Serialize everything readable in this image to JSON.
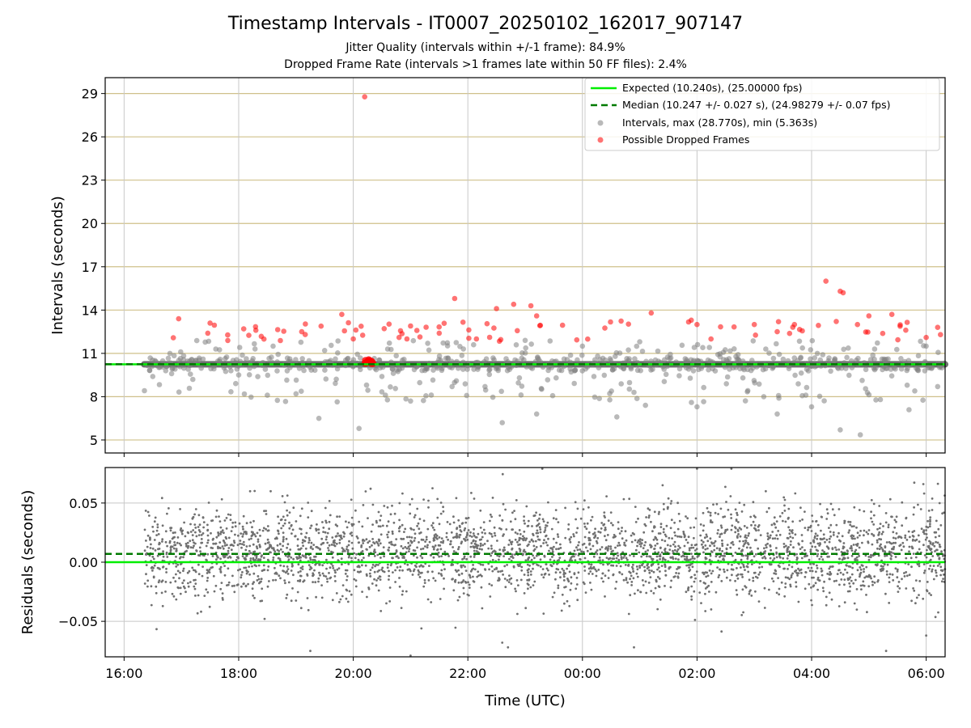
{
  "figure": {
    "title": "Timestamp Intervals - IT0007_20250102_162017_907147",
    "subtitle_1": "Jitter Quality (intervals within +/-1 frame): 84.9%",
    "subtitle_2": "Dropped Frame Rate (intervals >1 frames late within 50 FF files): 2.4%"
  },
  "chart_data": [
    {
      "type": "scatter",
      "panel": "top",
      "ylabel": "Intervals (seconds)",
      "xlabel": "",
      "x_unit": "hours from 16:00 UTC",
      "xlim": [
        -0.33,
        14.33
      ],
      "ylim": [
        4.1,
        30.1
      ],
      "x_ticks": [
        0,
        2,
        4,
        6,
        8,
        10,
        12,
        14
      ],
      "y_ticks": [
        5,
        8,
        11,
        14,
        17,
        20,
        23,
        26,
        29
      ],
      "y_tick_labels": [
        "5",
        "8",
        "11",
        "14",
        "17",
        "20",
        "23",
        "26",
        "29"
      ],
      "grid": true,
      "legend_position": "top-right",
      "expected_interval": 10.24,
      "median_interval": 10.247,
      "legend": [
        "Expected (10.240s), (25.00000 fps)",
        "Median (10.247 +/- 0.027 s), (24.98279 +/- 0.07 fps)",
        "Intervals, max (28.770s), min (5.363s)",
        "Possible Dropped Frames"
      ],
      "series": [
        {
          "name": "Possible Dropped Frames",
          "points": [
            [
              4.2,
              28.77
            ],
            [
              5.77,
              14.8
            ],
            [
              5.5,
              12.4
            ],
            [
              3.8,
              13.7
            ],
            [
              4.0,
              12.0
            ],
            [
              12.25,
              16.0
            ],
            [
              12.5,
              15.3
            ],
            [
              12.55,
              15.2
            ],
            [
              6.5,
              14.1
            ],
            [
              6.8,
              14.4
            ],
            [
              7.1,
              14.3
            ],
            [
              7.2,
              13.6
            ],
            [
              9.2,
              13.8
            ],
            [
              10.0,
              13.0
            ],
            [
              3.1,
              12.5
            ],
            [
              2.3,
              12.6
            ],
            [
              9.9,
              13.3
            ],
            [
              11.0,
              13.0
            ],
            [
              11.4,
              12.5
            ],
            [
              13.0,
              13.6
            ],
            [
              13.4,
              13.7
            ],
            [
              14.2,
              12.8
            ],
            [
              14.25,
              12.3
            ],
            [
              14.0,
              12.1
            ],
            [
              12.8,
              13.0
            ],
            [
              11.7,
              13.0
            ],
            [
              5.0,
              12.9
            ],
            [
              1.5,
              13.1
            ],
            [
              4.8,
              12.1
            ],
            [
              6.15,
              12.0
            ]
          ]
        },
        {
          "name": "Intervals, max (28.770s), min (5.363s)",
          "points": [
            [
              0.5,
              9.4
            ],
            [
              1.2,
              9.2
            ],
            [
              2.0,
              9.5
            ],
            [
              2.5,
              8.1
            ],
            [
              3.0,
              8.2
            ],
            [
              3.4,
              6.5
            ],
            [
              4.1,
              5.8
            ],
            [
              4.5,
              9.4
            ],
            [
              5.0,
              7.7
            ],
            [
              5.8,
              9.1
            ],
            [
              6.6,
              6.2
            ],
            [
              6.9,
              9.3
            ],
            [
              7.2,
              6.8
            ],
            [
              8.2,
              9.4
            ],
            [
              8.6,
              6.6
            ],
            [
              9.1,
              7.4
            ],
            [
              10.0,
              7.3
            ],
            [
              10.8,
              9.3
            ],
            [
              11.4,
              6.8
            ],
            [
              12.0,
              7.3
            ],
            [
              12.5,
              5.7
            ],
            [
              12.85,
              5.36
            ],
            [
              13.2,
              7.8
            ],
            [
              13.7,
              7.1
            ],
            [
              14.2,
              8.7
            ],
            [
              0.8,
              11.0
            ],
            [
              1.6,
              11.3
            ],
            [
              2.6,
              11.5
            ],
            [
              3.5,
              11.2
            ],
            [
              4.6,
              11.3
            ],
            [
              5.3,
              11.7
            ],
            [
              6.1,
              11.6
            ],
            [
              7.0,
              11.9
            ],
            [
              8.0,
              11.5
            ],
            [
              9.0,
              11.8
            ],
            [
              10.1,
              11.4
            ],
            [
              11.2,
              11.3
            ],
            [
              12.1,
              11.0
            ],
            [
              13.1,
              11.3
            ],
            [
              14.0,
              11.5
            ],
            [
              6.3,
              8.7
            ],
            [
              8.9,
              8.3
            ],
            [
              11.9,
              8.1
            ],
            [
              13.8,
              8.4
            ]
          ]
        }
      ]
    },
    {
      "type": "scatter",
      "panel": "bottom",
      "ylabel": "Residuals (seconds)",
      "xlabel": "Time (UTC)",
      "x_unit": "hours from 16:00 UTC",
      "xlim": [
        -0.33,
        14.33
      ],
      "ylim": [
        -0.08,
        0.08
      ],
      "x_ticks": [
        0,
        2,
        4,
        6,
        8,
        10,
        12,
        14
      ],
      "x_tick_labels": [
        "16:00",
        "18:00",
        "20:00",
        "22:00",
        "00:00",
        "02:00",
        "04:00",
        "06:00"
      ],
      "y_ticks": [
        -0.05,
        0.0,
        0.05
      ],
      "y_tick_labels": [
        "−0.05",
        "0.00",
        "0.05"
      ],
      "grid": true,
      "expected_residual": 0.0,
      "median_residual": 0.007,
      "data_x_range": [
        0.35,
        14.33
      ],
      "residual_stddev": 0.027,
      "outlier_points": [
        [
          3.25,
          -0.075
        ],
        [
          5.0,
          -0.079
        ],
        [
          6.6,
          -0.068
        ],
        [
          7.3,
          0.079
        ],
        [
          6.7,
          -0.072
        ],
        [
          10.0,
          0.079
        ],
        [
          10.6,
          0.079
        ],
        [
          8.9,
          -0.072
        ],
        [
          13.3,
          -0.075
        ],
        [
          14.0,
          -0.062
        ],
        [
          2.2,
          0.06
        ],
        [
          9.4,
          0.065
        ],
        [
          13.95,
          0.066
        ],
        [
          11.2,
          0.06
        ]
      ]
    }
  ]
}
